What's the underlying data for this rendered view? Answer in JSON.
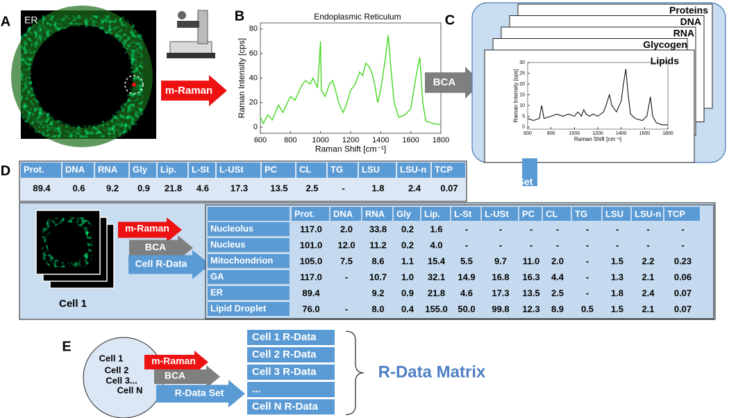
{
  "panels": {
    "A": {
      "label": "A",
      "image_label": "ER",
      "arrow": "m-Raman"
    },
    "B": {
      "label": "B"
    },
    "C": {
      "label": "C",
      "pages": [
        "Proteins",
        "DNA",
        "RNA",
        "Glycogen",
        "Lipids"
      ],
      "arrow": "BCA"
    },
    "D": {
      "label": "D",
      "arrow": "R-Data Set",
      "summary": {
        "headers": [
          "Prot.",
          "DNA",
          "RNA",
          "Gly",
          "Lip.",
          "L-St",
          "L-USt",
          "PC",
          "CL",
          "TG",
          "LSU",
          "LSU-n",
          "TCP"
        ],
        "values": [
          "89.4",
          "0.6",
          "9.2",
          "0.9",
          "21.8",
          "4.6",
          "17.3",
          "13.5",
          "2.5",
          "-",
          "1.8",
          "2.4",
          "0.07"
        ]
      },
      "cell_label": "Cell 1",
      "arrows": [
        "m-Raman",
        "BCA",
        "Cell R-Data"
      ],
      "table": {
        "headers": [
          "Prot.",
          "DNA",
          "RNA",
          "Gly",
          "Lip.",
          "L-St",
          "L-USt",
          "PC",
          "CL",
          "TG",
          "LSU",
          "LSU-n",
          "TCP"
        ],
        "rows": [
          {
            "name": "Nucleolus",
            "values": [
              "117.0",
              "2.0",
              "33.8",
              "0.2",
              "1.6",
              "-",
              "-",
              "-",
              "-",
              "-",
              "-",
              "-",
              "-"
            ]
          },
          {
            "name": "Nucleus",
            "values": [
              "101.0",
              "12.0",
              "11.2",
              "0.2",
              "4.0",
              "-",
              "-",
              "-",
              "-",
              "-",
              "-",
              "-",
              "-"
            ]
          },
          {
            "name": "Mitochondrion",
            "values": [
              "105.0",
              "7.5",
              "8.6",
              "1.1",
              "15.4",
              "5.5",
              "9.7",
              "11.0",
              "2.0",
              "-",
              "1.5",
              "2.2",
              "0.23"
            ]
          },
          {
            "name": "GA",
            "values": [
              "117.0",
              "-",
              "10.7",
              "1.0",
              "32.1",
              "14.9",
              "16.8",
              "16.3",
              "4.4",
              "-",
              "1.3",
              "2.1",
              "0.06"
            ]
          },
          {
            "name": "ER",
            "values": [
              "89.4",
              null,
              "9.2",
              "0.9",
              "21.8",
              "4.6",
              "17.3",
              "13.5",
              "2.5",
              "-",
              "1.8",
              "2.4",
              "0.07"
            ]
          },
          {
            "name": "Lipid Droplet",
            "values": [
              "76.0",
              "-",
              "8.0",
              "0.4",
              "155.0",
              "50.0",
              "99.8",
              "12.3",
              "8.9",
              "0.5",
              "1.5",
              "2.1",
              "0.07"
            ]
          }
        ]
      }
    },
    "E": {
      "label": "E",
      "cells": [
        "Cell 1",
        "Cell 2",
        "Cell 3...",
        "Cell N"
      ],
      "arrows": [
        "m-Raman",
        "BCA",
        "R-Data Set"
      ],
      "list": [
        "Cell 1 R-Data",
        "Cell 2 R-Data",
        "Cell 3 R-Data",
        "...",
        "Cell N R-Data"
      ],
      "matrix_label": "R-Data Matrix"
    }
  },
  "chart_data": [
    {
      "type": "line",
      "title": "Endoplasmic Reticulum",
      "x_label": "Raman Shift [cm⁻¹]",
      "y_label": "Raman Intensity [cps]",
      "x": [
        600,
        620,
        650,
        680,
        720,
        750,
        780,
        800,
        830,
        860,
        880,
        900,
        930,
        950,
        980,
        1000,
        1005,
        1030,
        1060,
        1080,
        1100,
        1120,
        1150,
        1170,
        1200,
        1230,
        1260,
        1280,
        1300,
        1320,
        1340,
        1360,
        1380,
        1400,
        1430,
        1450,
        1470,
        1490,
        1520,
        1560,
        1600,
        1640,
        1660,
        1680,
        1700,
        1750,
        1800
      ],
      "series": [
        {
          "color": "#4fd82e",
          "values": [
            8,
            3,
            10,
            6,
            18,
            12,
            20,
            25,
            22,
            30,
            35,
            38,
            35,
            40,
            32,
            70,
            30,
            25,
            35,
            38,
            30,
            20,
            12,
            18,
            30,
            35,
            45,
            42,
            52,
            50,
            45,
            35,
            20,
            30,
            55,
            75,
            45,
            20,
            8,
            10,
            15,
            45,
            57,
            20,
            5,
            3,
            2
          ]
        }
      ],
      "xlim": [
        600,
        1800
      ],
      "ylim": [
        -5,
        85
      ],
      "xticks": [
        600,
        800,
        1000,
        1200,
        1400,
        1600,
        1800
      ],
      "yticks": [
        0,
        20,
        40,
        60,
        80
      ]
    },
    {
      "type": "line",
      "x_label": "Raman Shift [cm⁻¹]",
      "y_label": "Raman Intensity [cps]",
      "x": [
        600,
        650,
        700,
        720,
        740,
        800,
        850,
        900,
        950,
        1000,
        1030,
        1060,
        1080,
        1100,
        1130,
        1160,
        1200,
        1250,
        1270,
        1300,
        1320,
        1360,
        1400,
        1420,
        1440,
        1460,
        1480,
        1520,
        1580,
        1620,
        1650,
        1670,
        1700,
        1750,
        1800
      ],
      "series": [
        {
          "color": "#111111",
          "values": [
            4,
            3,
            4,
            10,
            4,
            5,
            6,
            5,
            6,
            5,
            7,
            5,
            8,
            6,
            5,
            6,
            5,
            7,
            10,
            15,
            10,
            7,
            12,
            20,
            27,
            15,
            6,
            4,
            3,
            5,
            14,
            5,
            2,
            1,
            1
          ]
        }
      ],
      "xlim": [
        600,
        1800
      ],
      "ylim": [
        -1,
        30
      ],
      "xticks": [
        600,
        800,
        1000,
        1200,
        1400,
        1600,
        1800
      ],
      "yticks": [
        0,
        5,
        10,
        15,
        20,
        25,
        30
      ]
    }
  ]
}
